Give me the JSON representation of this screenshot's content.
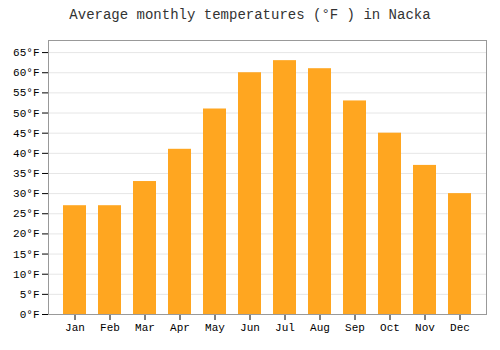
{
  "chart_data": {
    "type": "bar",
    "title": "Average monthly temperatures (°F ) in Nacka",
    "categories": [
      "Jan",
      "Feb",
      "Mar",
      "Apr",
      "May",
      "Jun",
      "Jul",
      "Aug",
      "Sep",
      "Oct",
      "Nov",
      "Dec"
    ],
    "values": [
      27,
      27,
      33,
      41,
      51,
      60,
      63,
      61,
      53,
      45,
      37,
      30
    ],
    "color": "#FFA620",
    "ylim": [
      0,
      68
    ],
    "yticks": [
      {
        "value": 0,
        "label": "0°F"
      },
      {
        "value": 5,
        "label": "5°F"
      },
      {
        "value": 10,
        "label": "10°F"
      },
      {
        "value": 15,
        "label": "15°F"
      },
      {
        "value": 20,
        "label": "20°F"
      },
      {
        "value": 25,
        "label": "25°F"
      },
      {
        "value": 30,
        "label": "30°F"
      },
      {
        "value": 35,
        "label": "35°F"
      },
      {
        "value": 40,
        "label": "40°F"
      },
      {
        "value": 45,
        "label": "45°F"
      },
      {
        "value": 50,
        "label": "50°F"
      },
      {
        "value": 55,
        "label": "55°F"
      },
      {
        "value": 60,
        "label": "60°F"
      },
      {
        "value": 65,
        "label": "65°F"
      }
    ],
    "grid": true
  }
}
